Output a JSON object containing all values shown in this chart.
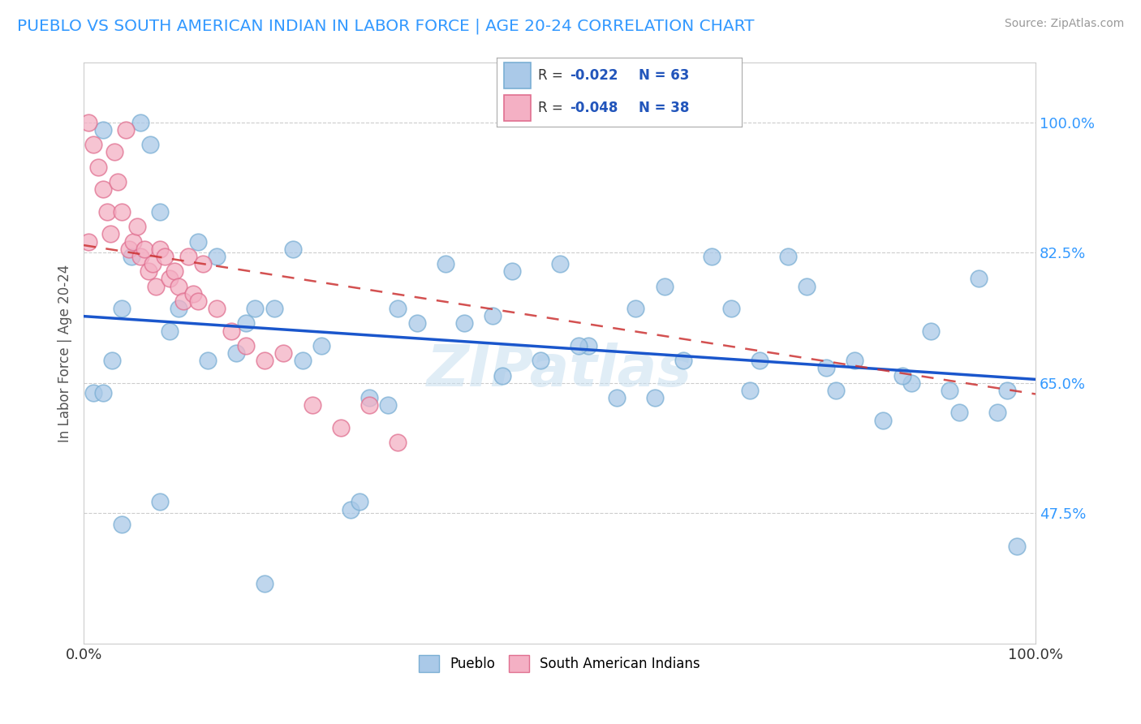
{
  "title": "PUEBLO VS SOUTH AMERICAN INDIAN IN LABOR FORCE | AGE 20-24 CORRELATION CHART",
  "source": "Source: ZipAtlas.com",
  "ylabel": "In Labor Force | Age 20-24",
  "pueblo_R": "-0.022",
  "pueblo_N": "63",
  "sa_R": "-0.048",
  "sa_N": "38",
  "x_min": 0.0,
  "x_max": 1.0,
  "y_min": 0.3,
  "y_max": 1.08,
  "pueblo_color": "#aac9e8",
  "pueblo_color_edge": "#7bafd4",
  "sa_color": "#f4b0c4",
  "sa_color_edge": "#e07090",
  "trend_pueblo_color": "#1a56cc",
  "trend_sa_color": "#cc3333",
  "watermark_color": "#c8dff0",
  "y_tick_vals": [
    0.475,
    0.65,
    0.825,
    1.0
  ],
  "y_tick_labels": [
    "47.5%",
    "65.0%",
    "82.5%",
    "100.0%"
  ],
  "pueblo_scatter_x": [
    0.01,
    0.02,
    0.02,
    0.03,
    0.04,
    0.05,
    0.06,
    0.07,
    0.08,
    0.09,
    0.1,
    0.12,
    0.14,
    0.16,
    0.18,
    0.2,
    0.22,
    0.25,
    0.28,
    0.3,
    0.33,
    0.35,
    0.38,
    0.4,
    0.43,
    0.45,
    0.48,
    0.5,
    0.53,
    0.56,
    0.58,
    0.61,
    0.63,
    0.66,
    0.68,
    0.71,
    0.74,
    0.76,
    0.79,
    0.81,
    0.84,
    0.87,
    0.89,
    0.91,
    0.94,
    0.96,
    0.98,
    0.13,
    0.17,
    0.23,
    0.32,
    0.44,
    0.52,
    0.6,
    0.7,
    0.78,
    0.86,
    0.92,
    0.97,
    0.04,
    0.08,
    0.29,
    0.19
  ],
  "pueblo_scatter_y": [
    0.637,
    0.637,
    0.99,
    0.68,
    0.75,
    0.82,
    1.0,
    0.97,
    0.88,
    0.72,
    0.75,
    0.84,
    0.82,
    0.69,
    0.75,
    0.75,
    0.83,
    0.7,
    0.48,
    0.63,
    0.75,
    0.73,
    0.81,
    0.73,
    0.74,
    0.8,
    0.68,
    0.81,
    0.7,
    0.63,
    0.75,
    0.78,
    0.68,
    0.82,
    0.75,
    0.68,
    0.82,
    0.78,
    0.64,
    0.68,
    0.6,
    0.65,
    0.72,
    0.64,
    0.79,
    0.61,
    0.43,
    0.68,
    0.73,
    0.68,
    0.62,
    0.66,
    0.7,
    0.63,
    0.64,
    0.67,
    0.66,
    0.61,
    0.64,
    0.46,
    0.49,
    0.49,
    0.38
  ],
  "sa_scatter_x": [
    0.005,
    0.01,
    0.015,
    0.02,
    0.025,
    0.028,
    0.032,
    0.036,
    0.04,
    0.044,
    0.048,
    0.052,
    0.056,
    0.06,
    0.064,
    0.068,
    0.072,
    0.076,
    0.08,
    0.085,
    0.09,
    0.095,
    0.1,
    0.105,
    0.11,
    0.115,
    0.12,
    0.125,
    0.14,
    0.155,
    0.17,
    0.19,
    0.21,
    0.24,
    0.27,
    0.3,
    0.33,
    0.005
  ],
  "sa_scatter_y": [
    1.0,
    0.97,
    0.94,
    0.91,
    0.88,
    0.85,
    0.96,
    0.92,
    0.88,
    0.99,
    0.83,
    0.84,
    0.86,
    0.82,
    0.83,
    0.8,
    0.81,
    0.78,
    0.83,
    0.82,
    0.79,
    0.8,
    0.78,
    0.76,
    0.82,
    0.77,
    0.76,
    0.81,
    0.75,
    0.72,
    0.7,
    0.68,
    0.69,
    0.62,
    0.59,
    0.62,
    0.57,
    0.84
  ]
}
